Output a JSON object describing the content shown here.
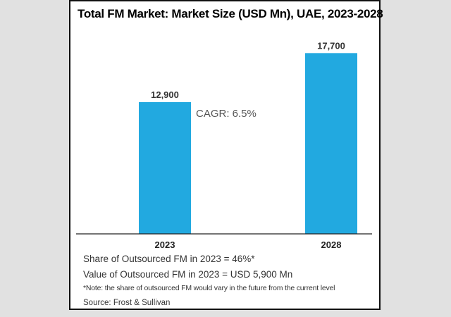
{
  "chart_data": {
    "type": "bar",
    "title": "Total FM Market: Market Size (USD Mn), UAE, 2023-2028",
    "categories": [
      "2023",
      "2028"
    ],
    "values": [
      12900,
      17700
    ],
    "data_labels": [
      "12,900",
      "17,700"
    ],
    "annotation": "CAGR: 6.5%",
    "ylim": [
      0,
      20000
    ],
    "grid": false,
    "bar_color": "#22a9e0"
  },
  "notes": {
    "share": "Share of Outsourced FM in 2023 = 46%*",
    "value": "Value of Outsourced FM in 2023 = USD 5,900 Mn",
    "footnote": "*Note: the share of outsourced FM would vary in the future from the current level",
    "source": "Source: Frost & Sullivan"
  }
}
